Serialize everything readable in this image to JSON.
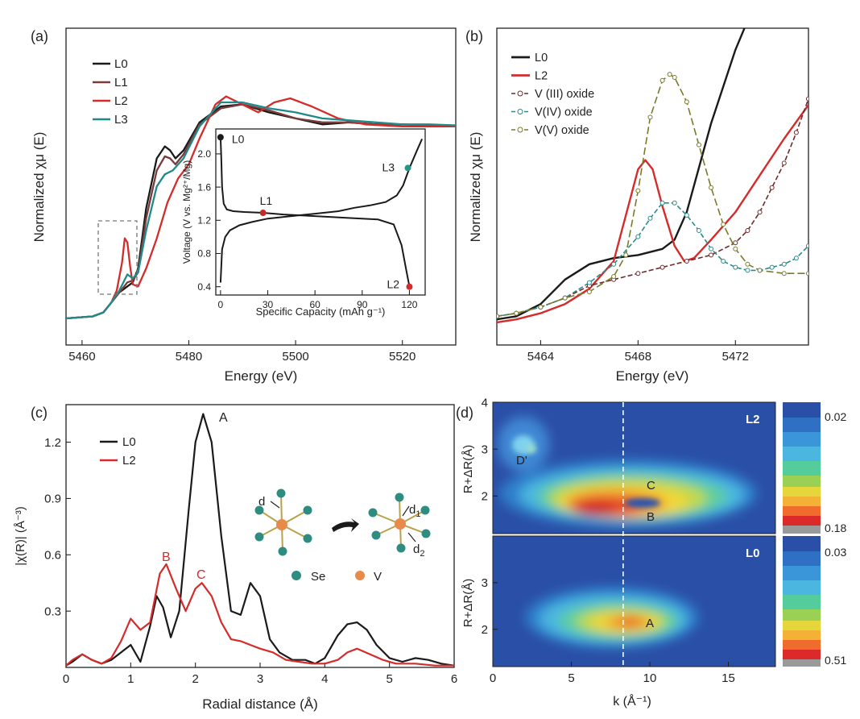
{
  "chart_data": [
    {
      "type": "line",
      "panel_label": "(a)",
      "xlabel": "Energy (eV)",
      "ylabel": "Normalized χμ (E)",
      "xlim": [
        5457,
        5530
      ],
      "ylim": [
        0,
        1.35
      ],
      "xticks": [
        5460,
        5480,
        5500,
        5520
      ],
      "xtick_labels": [
        "5460",
        "5480",
        "5500",
        "5520"
      ],
      "series": [
        {
          "name": "L0",
          "color": "#1a1a1a",
          "x": [
            5457,
            5462,
            5464,
            5465.5,
            5467,
            5468.5,
            5469.5,
            5470.5,
            5472,
            5474,
            5475.5,
            5476.5,
            5477.5,
            5479,
            5482,
            5486,
            5490,
            5495,
            5500,
            5505,
            5510,
            5515,
            5520,
            5525,
            5530
          ],
          "y": [
            0,
            0.01,
            0.03,
            0.08,
            0.13,
            0.16,
            0.18,
            0.25,
            0.55,
            0.8,
            0.86,
            0.84,
            0.8,
            0.84,
            0.98,
            1.06,
            1.07,
            1.03,
            1.0,
            0.97,
            0.98,
            0.97,
            0.97,
            0.965,
            0.96
          ]
        },
        {
          "name": "L1",
          "color": "#7a3b3b",
          "x": [
            5457,
            5462,
            5464,
            5465.5,
            5467,
            5468.5,
            5469.5,
            5470.5,
            5472,
            5474,
            5475.5,
            5476.5,
            5477.5,
            5479,
            5482,
            5486,
            5490,
            5495,
            5500,
            5505,
            5510,
            5515,
            5520,
            5525,
            5530
          ],
          "y": [
            0,
            0.01,
            0.03,
            0.08,
            0.13,
            0.18,
            0.19,
            0.23,
            0.5,
            0.74,
            0.81,
            0.8,
            0.77,
            0.82,
            0.97,
            1.05,
            1.07,
            1.04,
            1.0,
            0.98,
            0.98,
            0.97,
            0.97,
            0.965,
            0.96
          ]
        },
        {
          "name": "L2",
          "color": "#d42b2b",
          "x": [
            5457,
            5462,
            5464,
            5465.5,
            5466.5,
            5467.5,
            5468,
            5468.5,
            5469,
            5469.5,
            5470.5,
            5472,
            5474,
            5476,
            5478,
            5480,
            5482,
            5485,
            5487,
            5490,
            5493,
            5496,
            5499,
            5503,
            5508,
            5513,
            5520,
            5525,
            5530
          ],
          "y": [
            0,
            0.01,
            0.03,
            0.08,
            0.14,
            0.28,
            0.4,
            0.38,
            0.26,
            0.17,
            0.16,
            0.25,
            0.4,
            0.58,
            0.7,
            0.77,
            0.9,
            1.07,
            1.11,
            1.07,
            1.03,
            1.08,
            1.1,
            1.06,
            1.0,
            0.97,
            0.96,
            0.96,
            0.96
          ]
        },
        {
          "name": "L3",
          "color": "#1f8a8a",
          "x": [
            5457,
            5462,
            5464,
            5465.5,
            5467,
            5468.5,
            5469.5,
            5470.5,
            5472,
            5474,
            5475.5,
            5477,
            5479,
            5482,
            5486,
            5490,
            5495,
            5500,
            5505,
            5510,
            5515,
            5520,
            5525,
            5530
          ],
          "y": [
            0,
            0.01,
            0.03,
            0.08,
            0.14,
            0.22,
            0.2,
            0.23,
            0.44,
            0.66,
            0.72,
            0.74,
            0.8,
            0.96,
            1.08,
            1.08,
            1.05,
            1.03,
            1.0,
            0.99,
            0.98,
            0.97,
            0.97,
            0.965
          ]
        }
      ],
      "legend": [
        "L0",
        "L1",
        "L2",
        "L3"
      ],
      "legend_placement": "top-left",
      "annotation": "dashed box around pre-edge region",
      "inset": {
        "type": "line",
        "xlabel": "Specific Capacity (mAh g⁻¹)",
        "ylabel": "Voltage (V vs. Mg²⁺/Mg)",
        "xlim": [
          -3,
          130
        ],
        "ylim": [
          0.3,
          2.3
        ],
        "xticks": [
          0,
          30,
          60,
          90,
          120
        ],
        "yticks": [
          0.4,
          0.8,
          1.2,
          1.6,
          2.0
        ],
        "discharge": {
          "x": [
            0,
            0.5,
            1,
            2,
            4,
            8,
            15,
            27,
            40,
            60,
            80,
            100,
            110,
            115,
            118,
            120
          ],
          "y": [
            2.2,
            1.95,
            1.6,
            1.4,
            1.33,
            1.31,
            1.3,
            1.29,
            1.27,
            1.25,
            1.23,
            1.21,
            1.15,
            0.9,
            0.6,
            0.4
          ]
        },
        "charge": {
          "x": [
            0,
            1,
            3,
            6,
            12,
            20,
            30,
            45,
            60,
            75,
            85,
            95,
            105,
            112,
            116,
            120,
            125,
            128
          ],
          "y": [
            0.45,
            0.85,
            1.0,
            1.08,
            1.14,
            1.18,
            1.22,
            1.25,
            1.28,
            1.31,
            1.35,
            1.38,
            1.42,
            1.5,
            1.62,
            1.83,
            2.05,
            2.18
          ]
        },
        "points": [
          {
            "label": "L0",
            "x": 0,
            "y": 2.2,
            "color": "#1a1a1a"
          },
          {
            "label": "L1",
            "x": 27,
            "y": 1.29,
            "color": "#c62828"
          },
          {
            "label": "L2",
            "x": 120,
            "y": 0.4,
            "color": "#d42b2b"
          },
          {
            "label": "L3",
            "x": 119,
            "y": 1.83,
            "color": "#1f9a8a"
          }
        ]
      }
    },
    {
      "type": "line",
      "panel_label": "(b)",
      "xlabel": "Energy (eV)",
      "ylabel": "Normalized χμ (E)",
      "xlim": [
        5462.2,
        5475
      ],
      "ylim": [
        0,
        1.0
      ],
      "xticks": [
        5464,
        5468,
        5472
      ],
      "xtick_labels": [
        "5464",
        "5468",
        "5472"
      ],
      "series": [
        {
          "name": "L0",
          "color": "#1a1a1a",
          "x": [
            5462.2,
            5463,
            5464,
            5465,
            5466,
            5467,
            5468,
            5469,
            5469.5,
            5470,
            5471,
            5472,
            5473
          ],
          "y": [
            0.01,
            0.02,
            0.06,
            0.14,
            0.19,
            0.21,
            0.22,
            0.24,
            0.27,
            0.36,
            0.65,
            0.89,
            1.08
          ]
        },
        {
          "name": "L2",
          "color": "#d42b2b",
          "x": [
            5462.2,
            5463,
            5464,
            5465,
            5466,
            5467,
            5467.6,
            5468,
            5468.3,
            5468.6,
            5469,
            5469.5,
            5469.9,
            5470.3,
            5471,
            5472,
            5473,
            5474,
            5475
          ],
          "y": [
            0.0,
            0.01,
            0.03,
            0.06,
            0.11,
            0.2,
            0.38,
            0.5,
            0.53,
            0.5,
            0.38,
            0.25,
            0.2,
            0.21,
            0.27,
            0.36,
            0.48,
            0.6,
            0.71
          ]
        },
        {
          "name": "V (III) oxide",
          "color": "#6e2a2a",
          "x": [
            5462.2,
            5463,
            5464,
            5465,
            5466,
            5467,
            5468,
            5469,
            5470,
            5471,
            5472,
            5472.5,
            5473,
            5473.5,
            5474,
            5474.5,
            5475
          ],
          "y": [
            0.02,
            0.03,
            0.05,
            0.08,
            0.12,
            0.14,
            0.16,
            0.18,
            0.2,
            0.22,
            0.26,
            0.3,
            0.36,
            0.44,
            0.52,
            0.62,
            0.73
          ]
        },
        {
          "name": "V(IV) oxide",
          "color": "#2a8a8a",
          "x": [
            5462.2,
            5463,
            5464,
            5465,
            5466,
            5467,
            5468,
            5468.5,
            5469,
            5469.5,
            5470,
            5470.5,
            5471,
            5471.5,
            5472,
            5472.5,
            5473,
            5473.5,
            5474,
            5474.5,
            5475
          ],
          "y": [
            0.02,
            0.03,
            0.05,
            0.08,
            0.13,
            0.19,
            0.28,
            0.34,
            0.39,
            0.39,
            0.35,
            0.3,
            0.24,
            0.2,
            0.18,
            0.17,
            0.17,
            0.18,
            0.19,
            0.21,
            0.25
          ]
        },
        {
          "name": "V(V) oxide",
          "color": "#7a7a2a",
          "x": [
            5462.2,
            5463,
            5464,
            5465,
            5466,
            5467,
            5467.5,
            5468,
            5468.5,
            5469,
            5469.3,
            5469.5,
            5470,
            5470.5,
            5471,
            5471.5,
            5472,
            5472.5,
            5473,
            5474,
            5475
          ],
          "y": [
            0.02,
            0.03,
            0.05,
            0.08,
            0.1,
            0.15,
            0.22,
            0.43,
            0.67,
            0.79,
            0.81,
            0.8,
            0.72,
            0.58,
            0.44,
            0.32,
            0.24,
            0.19,
            0.17,
            0.16,
            0.16
          ]
        }
      ],
      "legend": [
        "L0",
        "L2",
        "V (III) oxide",
        "V(IV) oxide",
        "V(V) oxide"
      ],
      "legend_placement": "top-left"
    },
    {
      "type": "line",
      "panel_label": "(c)",
      "xlabel": "Radial distance (Å)",
      "ylabel": "|χ(R)| (Å⁻³)",
      "xlim": [
        0,
        6
      ],
      "ylim": [
        0,
        1.4
      ],
      "xticks": [
        0,
        1,
        2,
        3,
        4,
        5,
        6
      ],
      "yticks": [
        0.3,
        0.6,
        0.9,
        1.2
      ],
      "ytick_labels": [
        "0.3",
        "0.6",
        "0.9",
        "1.2"
      ],
      "series": [
        {
          "name": "L0",
          "color": "#1a1a1a",
          "x": [
            0,
            0.1,
            0.25,
            0.4,
            0.55,
            0.7,
            0.85,
            1.0,
            1.15,
            1.3,
            1.4,
            1.5,
            1.62,
            1.75,
            1.9,
            2.0,
            2.12,
            2.25,
            2.4,
            2.55,
            2.7,
            2.85,
            3.0,
            3.15,
            3.3,
            3.5,
            3.7,
            3.85,
            4.0,
            4.2,
            4.35,
            4.5,
            4.65,
            4.8,
            5.0,
            5.2,
            5.4,
            5.6,
            5.8,
            6.0
          ],
          "y": [
            0.01,
            0.03,
            0.07,
            0.04,
            0.02,
            0.04,
            0.08,
            0.12,
            0.03,
            0.22,
            0.38,
            0.32,
            0.16,
            0.3,
            0.85,
            1.2,
            1.35,
            1.2,
            0.7,
            0.3,
            0.28,
            0.45,
            0.38,
            0.15,
            0.08,
            0.04,
            0.04,
            0.02,
            0.05,
            0.17,
            0.23,
            0.24,
            0.2,
            0.12,
            0.05,
            0.03,
            0.05,
            0.04,
            0.02,
            0.01
          ]
        },
        {
          "name": "L2",
          "color": "#d42b2b",
          "x": [
            0,
            0.1,
            0.25,
            0.4,
            0.55,
            0.7,
            0.85,
            1.0,
            1.15,
            1.3,
            1.45,
            1.55,
            1.7,
            1.85,
            2.0,
            2.1,
            2.25,
            2.4,
            2.55,
            2.7,
            2.85,
            3.0,
            3.2,
            3.4,
            3.6,
            3.8,
            4.0,
            4.2,
            4.35,
            4.5,
            4.7,
            4.9,
            5.1,
            5.4,
            5.7,
            6.0
          ],
          "y": [
            0.01,
            0.04,
            0.07,
            0.04,
            0.02,
            0.05,
            0.14,
            0.26,
            0.2,
            0.24,
            0.5,
            0.55,
            0.42,
            0.3,
            0.42,
            0.45,
            0.38,
            0.24,
            0.15,
            0.14,
            0.12,
            0.1,
            0.08,
            0.04,
            0.03,
            0.02,
            0.02,
            0.04,
            0.08,
            0.1,
            0.07,
            0.04,
            0.02,
            0.02,
            0.01,
            0.01
          ]
        }
      ],
      "legend": [
        "L0",
        "L2"
      ],
      "legend_placement": "top-left",
      "annotations": [
        "A",
        "B",
        "C"
      ],
      "schematic_labels": {
        "d": "d",
        "d1": "d",
        "d1_sub": "1",
        "d2": "d",
        "d2_sub": "2",
        "se": "Se",
        "v": "V"
      }
    },
    {
      "type": "heatmap",
      "panel_label": "(d)",
      "xlabel": "k (Å⁻¹)",
      "ylabel": "R+ΔR(Å)",
      "xlim": [
        0,
        18
      ],
      "ylim": [
        1.2,
        4
      ],
      "xticks": [
        0,
        5,
        10,
        15
      ],
      "yticks": [
        2,
        3,
        4
      ],
      "dashed_k": 8.3,
      "panels": [
        {
          "tag": "L2",
          "colorbar_min": "0.02",
          "colorbar_max": "0.18",
          "features": [
            "D'",
            "C",
            "B"
          ]
        },
        {
          "tag": "L0",
          "colorbar_min": "0.03",
          "colorbar_max": "0.51",
          "features": [
            "A"
          ]
        }
      ]
    }
  ]
}
